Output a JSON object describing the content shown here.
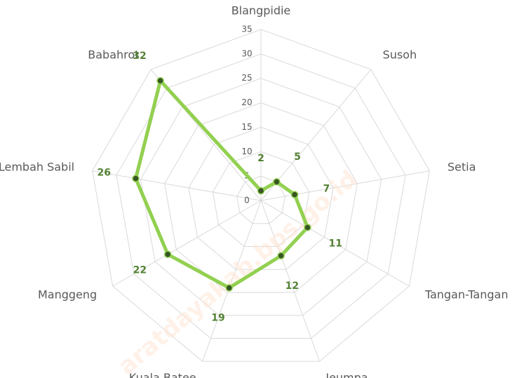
{
  "chart_data": {
    "type": "radar",
    "categories": [
      "Blangpidie",
      "Susoh",
      "Setia",
      "Tangan-Tangan",
      "Jeumpa",
      "Kuala Batee",
      "Manggeng",
      "Lembah Sabil",
      "Babahrot"
    ],
    "values": [
      2,
      5,
      7,
      11,
      12,
      19,
      22,
      26,
      32
    ],
    "color": "#92d050",
    "marker_color": "#375623",
    "label_color": "#548235",
    "ylim": [
      0,
      35
    ],
    "yticks": [
      0,
      5,
      10,
      15,
      20,
      25,
      30,
      35
    ],
    "grid": true,
    "watermark": "aratdayakab.bps.go.id"
  }
}
